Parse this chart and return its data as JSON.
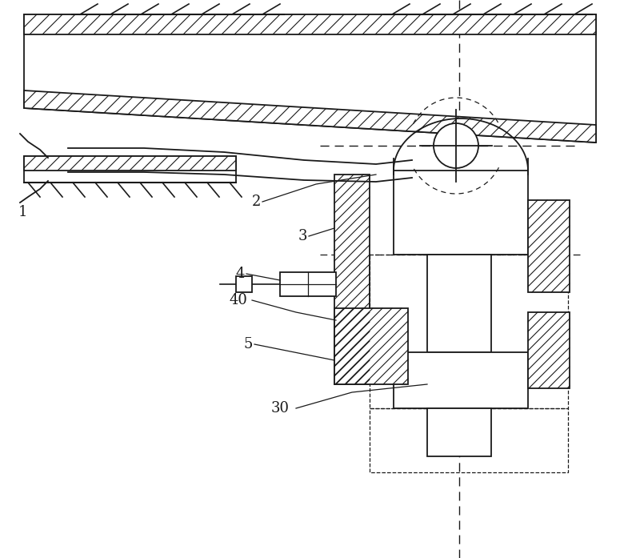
{
  "bg_color": "#ffffff",
  "line_color": "#1a1a1a",
  "fig_width": 8.0,
  "fig_height": 6.97,
  "dpi": 100
}
